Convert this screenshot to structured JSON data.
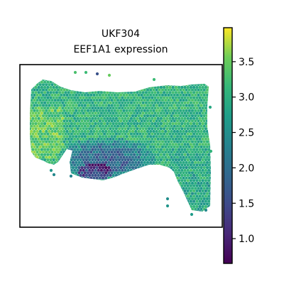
{
  "chart_data": {
    "type": "heatmap",
    "title_line1": "UKF304",
    "title_line2": "EEF1A1 expression",
    "colormap": "viridis",
    "colorbar": {
      "min": 0.65,
      "max": 3.98,
      "ticks": [
        1.0,
        1.5,
        2.0,
        2.5,
        3.0,
        3.5
      ],
      "tick_labels": [
        "1.0",
        "1.5",
        "2.0",
        "2.5",
        "3.0",
        "3.5"
      ]
    },
    "spot_value_range": [
      0.65,
      3.98
    ],
    "grid": false,
    "axes_frame": true
  }
}
